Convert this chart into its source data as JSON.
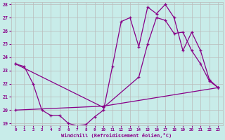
{
  "xlabel": "Windchill (Refroidissement éolien,°C)",
  "bg_color": "#c8ece9",
  "line_color": "#880088",
  "grid_color": "#bbbbbb",
  "ylim": [
    19,
    28
  ],
  "xlim": [
    -0.5,
    23.5
  ],
  "yticks": [
    19,
    20,
    21,
    22,
    23,
    24,
    25,
    26,
    27,
    28
  ],
  "xticks": [
    0,
    1,
    2,
    3,
    4,
    5,
    6,
    7,
    8,
    9,
    10,
    11,
    12,
    13,
    14,
    15,
    16,
    17,
    18,
    19,
    20,
    21,
    22,
    23
  ],
  "line1_x": [
    0,
    1,
    2,
    3,
    4,
    5,
    6,
    7,
    8,
    9,
    10,
    11,
    12,
    13,
    14,
    15,
    16,
    17,
    18,
    19,
    20,
    21,
    22,
    23
  ],
  "line1_y": [
    23.5,
    23.3,
    22.0,
    20.0,
    19.6,
    19.6,
    19.0,
    18.8,
    18.9,
    19.5,
    20.0,
    23.3,
    26.7,
    27.0,
    24.8,
    27.8,
    27.3,
    28.0,
    27.0,
    24.5,
    25.9,
    24.5,
    22.3,
    21.7
  ],
  "line2_x": [
    0,
    10,
    23
  ],
  "line2_y": [
    20.0,
    20.3,
    21.7
  ],
  "line3_x": [
    0,
    10,
    14,
    15,
    16,
    17,
    18,
    19,
    20,
    21,
    22,
    23
  ],
  "line3_y": [
    23.5,
    20.2,
    22.5,
    25.0,
    27.0,
    26.8,
    25.8,
    25.9,
    24.5,
    23.5,
    22.2,
    21.7
  ]
}
